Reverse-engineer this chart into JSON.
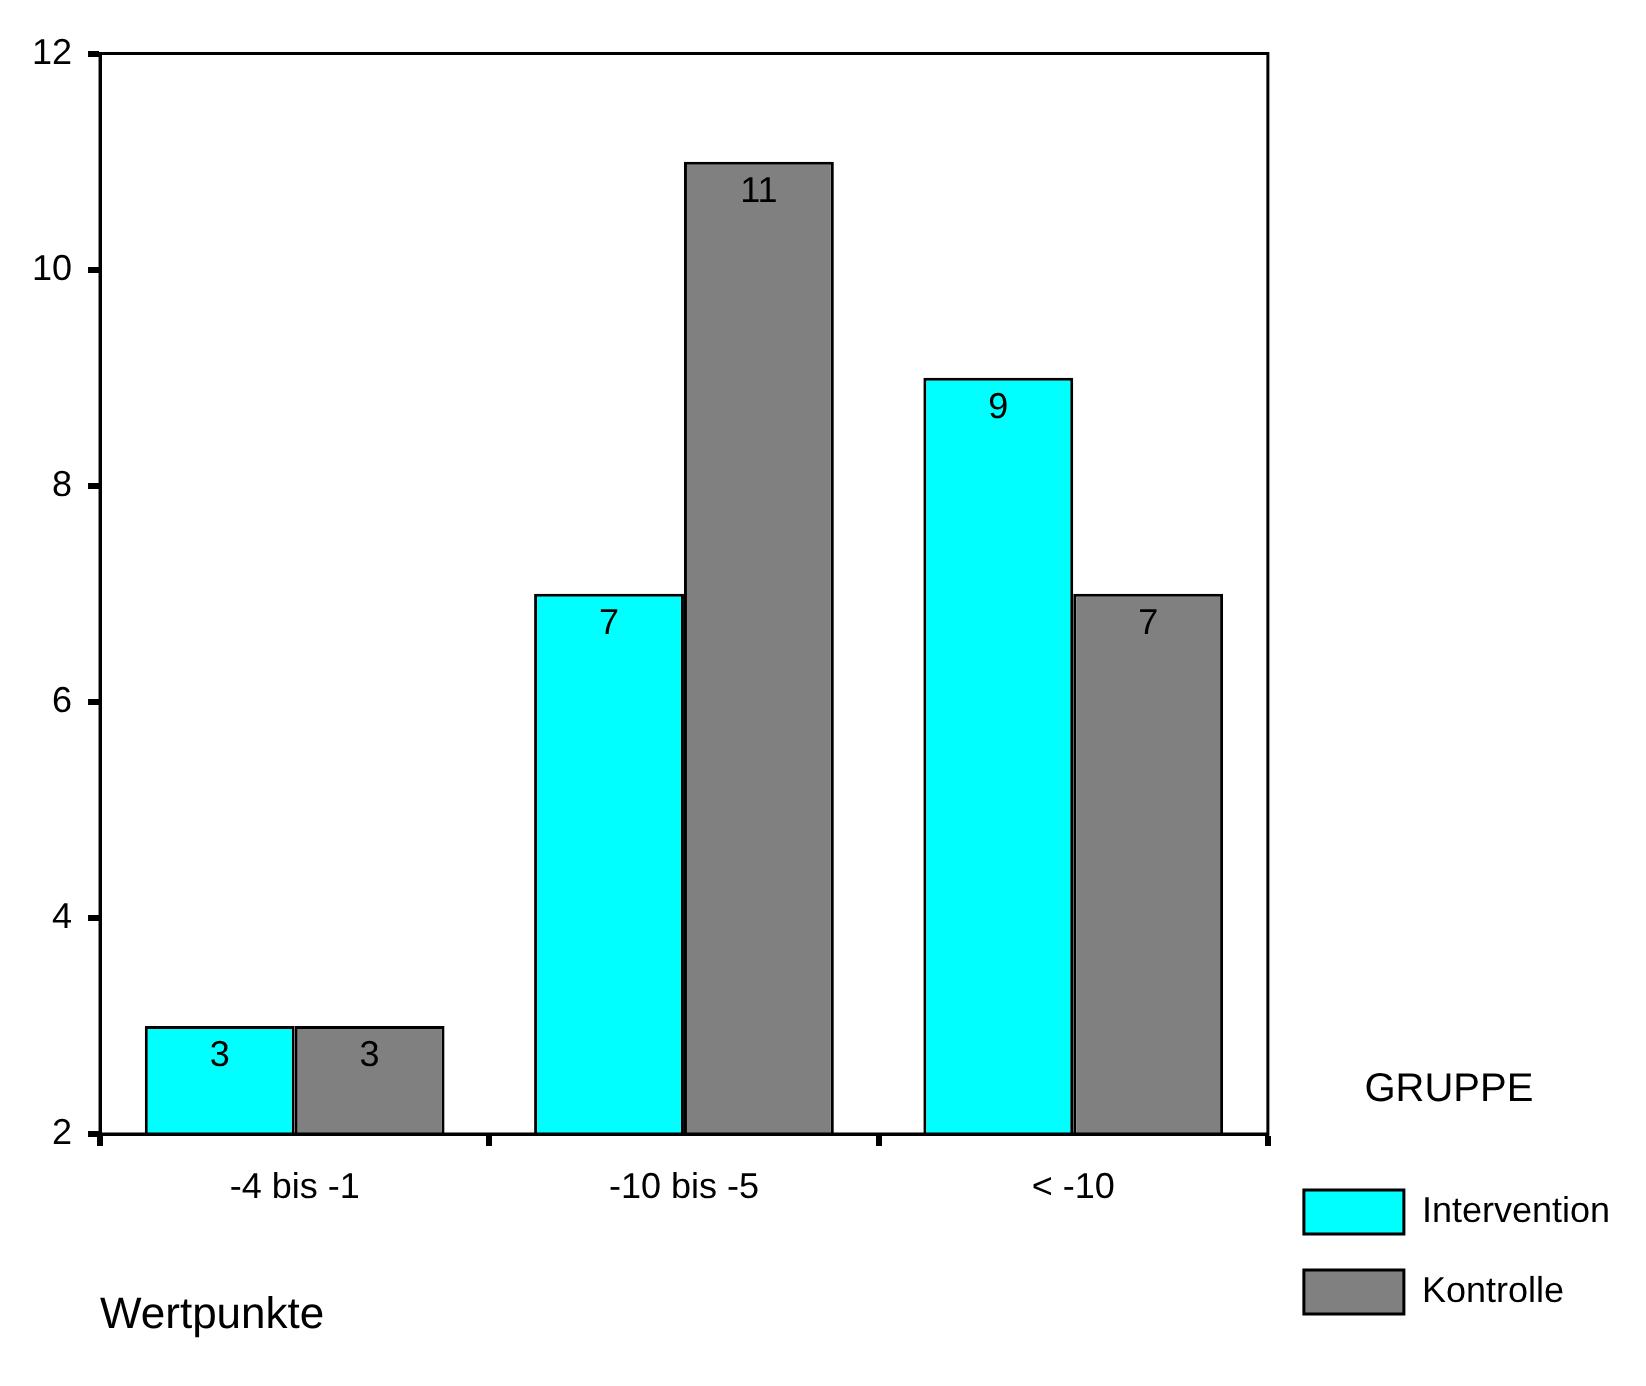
{
  "chart_data": {
    "type": "bar",
    "xlabel": "Wertpunkte",
    "legend_title": "GRUPPE",
    "categories": [
      "-4 bis -1",
      "-10 bis -5",
      "< -10"
    ],
    "series": [
      {
        "name": "Intervention",
        "color": "#00ffff",
        "values": [
          3,
          7,
          9
        ]
      },
      {
        "name": "Kontrolle",
        "color": "#808080",
        "values": [
          3,
          11,
          7
        ]
      }
    ],
    "ylim": [
      2,
      12
    ],
    "yticks": [
      2,
      4,
      6,
      8,
      10,
      12
    ],
    "grid": false,
    "legend": "right",
    "data_labels": true
  }
}
